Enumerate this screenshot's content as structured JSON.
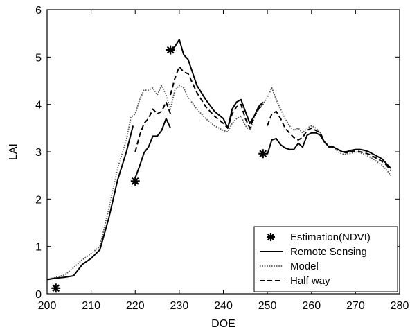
{
  "chart_data": {
    "type": "line",
    "title": "",
    "xlabel": "DOE",
    "ylabel": "LAI",
    "xlim": [
      200,
      280
    ],
    "ylim": [
      0,
      6
    ],
    "xticks": [
      200,
      210,
      220,
      230,
      240,
      250,
      260,
      270,
      280
    ],
    "yticks": [
      0,
      1,
      2,
      3,
      4,
      5,
      6
    ],
    "grid": false,
    "legend_position": "bottom-right",
    "series": [
      {
        "name": "Estimation(NDVI)",
        "kind": "markers",
        "marker": "asterisk",
        "color": "#000000",
        "x": [
          202,
          220,
          228,
          249
        ],
        "y": [
          0.12,
          2.38,
          5.15,
          2.96
        ]
      },
      {
        "name": "Remote Sensing",
        "kind": "line",
        "style": "solid",
        "color": "#000000",
        "segments": [
          {
            "x": [
              200,
              202,
              204,
              206,
              208,
              210,
              212,
              214,
              216,
              218,
              219.5
            ],
            "y": [
              0.3,
              0.33,
              0.35,
              0.38,
              0.62,
              0.75,
              0.93,
              1.6,
              2.4,
              3.0,
              3.55
            ]
          },
          {
            "x": [
              220,
              221,
              222,
              223,
              224,
              225,
              226,
              227,
              228
            ],
            "y": [
              2.45,
              2.7,
              2.98,
              3.1,
              3.33,
              3.33,
              3.45,
              3.7,
              3.5
            ]
          },
          {
            "x": [
              228,
              229,
              230,
              231,
              232,
              234,
              236,
              238,
              240,
              241,
              242,
              243,
              244,
              245,
              246,
              247,
              248,
              249
            ],
            "y": [
              5.12,
              5.22,
              5.37,
              5.05,
              4.95,
              4.4,
              4.1,
              3.85,
              3.7,
              3.5,
              3.9,
              4.05,
              4.1,
              3.85,
              3.6,
              3.75,
              3.95,
              4.05
            ]
          },
          {
            "x": [
              250,
              251,
              252,
              253,
              254,
              255,
              256,
              257,
              258,
              259,
              260,
              261,
              262,
              263,
              264,
              265,
              266,
              267,
              268,
              269,
              270,
              271,
              272,
              273,
              274,
              275,
              276,
              277,
              278
            ],
            "y": [
              2.95,
              3.25,
              3.28,
              3.15,
              3.08,
              3.05,
              3.05,
              3.18,
              3.1,
              3.35,
              3.4,
              3.4,
              3.35,
              3.2,
              3.1,
              3.1,
              3.05,
              3.0,
              3.0,
              3.03,
              3.05,
              3.05,
              3.03,
              3.0,
              2.95,
              2.9,
              2.85,
              2.75,
              2.65
            ]
          }
        ]
      },
      {
        "name": "Model",
        "kind": "line",
        "style": "dotted",
        "color": "#555555",
        "segments": [
          {
            "x": [
              200,
              202,
              204,
              206,
              208,
              210,
              212,
              214,
              216,
              218,
              219,
              220,
              221,
              222,
              223,
              224,
              225,
              226,
              227,
              228,
              229,
              230,
              231,
              232,
              234,
              236,
              238,
              240,
              241,
              242,
              243,
              244,
              245,
              246,
              247,
              248,
              249,
              250,
              251,
              252,
              253,
              254,
              255,
              256,
              257,
              258,
              259,
              260,
              261,
              262,
              263,
              264,
              265,
              266,
              267,
              268,
              269,
              270,
              271,
              272,
              273,
              274,
              275,
              276,
              277,
              278
            ],
            "y": [
              0.3,
              0.35,
              0.4,
              0.55,
              0.72,
              0.85,
              1.0,
              1.8,
              2.65,
              3.25,
              3.72,
              3.8,
              4.1,
              4.3,
              4.3,
              4.35,
              4.2,
              4.4,
              4.2,
              3.9,
              4.3,
              4.4,
              4.35,
              4.15,
              3.9,
              3.7,
              3.55,
              3.45,
              3.42,
              3.6,
              3.7,
              3.75,
              3.55,
              3.45,
              3.7,
              3.9,
              4.0,
              4.15,
              4.35,
              4.1,
              3.9,
              3.7,
              3.55,
              3.45,
              3.5,
              3.4,
              3.5,
              3.55,
              3.5,
              3.4,
              3.2,
              3.12,
              3.1,
              3.0,
              2.95,
              2.95,
              2.97,
              3.0,
              2.98,
              2.95,
              2.9,
              2.85,
              2.78,
              2.72,
              2.62,
              2.5
            ]
          }
        ]
      },
      {
        "name": "Half way",
        "kind": "line",
        "style": "dashed",
        "color": "#000000",
        "segments": [
          {
            "x": [
              220,
              221,
              222,
              223,
              224,
              225,
              226,
              227,
              228
            ],
            "y": [
              3.0,
              3.35,
              3.6,
              3.7,
              3.9,
              3.8,
              3.85,
              4.05,
              3.8
            ]
          },
          {
            "x": [
              228,
              229,
              230,
              231,
              232,
              234,
              236,
              238,
              240,
              241,
              242,
              243,
              244,
              245,
              246,
              247,
              248,
              249
            ],
            "y": [
              4.2,
              4.55,
              4.8,
              4.68,
              4.65,
              4.25,
              3.95,
              3.75,
              3.6,
              3.5,
              3.8,
              3.95,
              4.0,
              3.7,
              3.5,
              3.75,
              3.9,
              4.0
            ]
          },
          {
            "x": [
              250,
              251,
              252,
              253,
              254,
              255,
              256,
              257,
              258,
              259,
              260,
              261,
              262,
              263,
              264,
              265,
              266,
              267,
              268,
              269,
              270,
              271,
              272,
              273,
              274,
              275,
              276,
              277,
              278
            ],
            "y": [
              3.55,
              3.8,
              3.85,
              3.7,
              3.5,
              3.4,
              3.3,
              3.25,
              3.3,
              3.45,
              3.5,
              3.45,
              3.4,
              3.2,
              3.12,
              3.1,
              3.05,
              3.0,
              2.98,
              3.0,
              3.02,
              3.0,
              2.98,
              2.95,
              2.9,
              2.85,
              2.8,
              2.72,
              2.6
            ]
          }
        ]
      }
    ]
  }
}
